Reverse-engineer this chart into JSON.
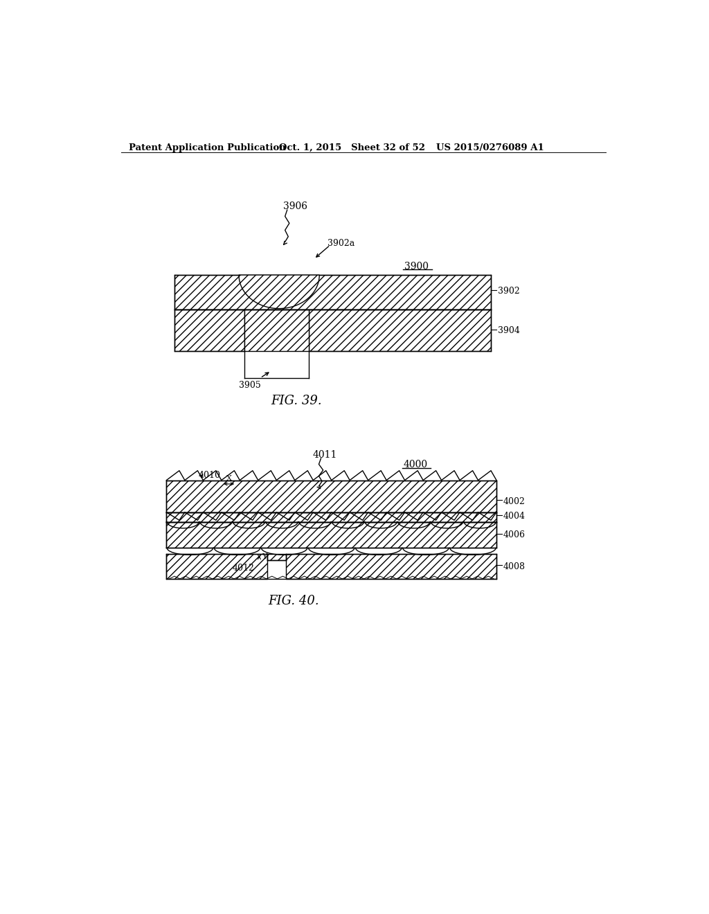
{
  "bg_color": "#ffffff",
  "header_left": "Patent Application Publication",
  "header_mid": "Oct. 1, 2015   Sheet 32 of 52",
  "header_right": "US 2015/0276089 A1",
  "fig39_label": "FIG. 39.",
  "fig40_label": "FIG. 40.",
  "label_3900": "3900",
  "label_3902": "3902",
  "label_3902a": "3902a",
  "label_3904": "3904",
  "label_3905": "3905",
  "label_3906": "3906",
  "label_4000": "4000",
  "label_4002": "4002",
  "label_4004": "4004",
  "label_4006": "4006",
  "label_4008": "4008",
  "label_4010": "4010",
  "label_4011": "4011",
  "label_4012": "4012",
  "line_color": "#000000"
}
